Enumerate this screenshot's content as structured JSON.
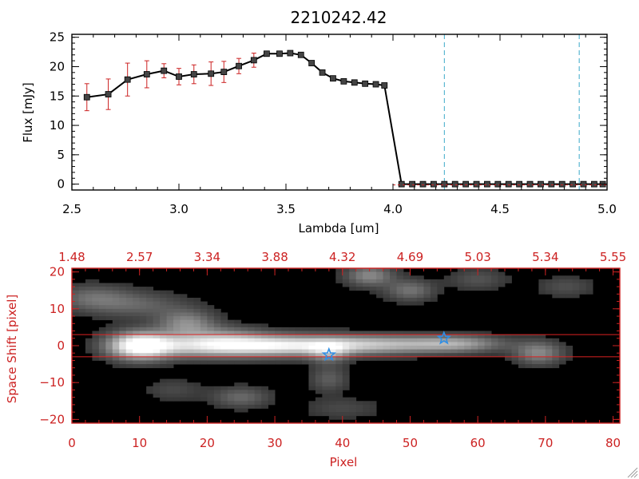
{
  "title": "2210242.42",
  "colors": {
    "axis_black": "#000000",
    "axis_red": "#cc2222",
    "errorbar": "#cc2222",
    "marker": "#444444",
    "vline": "#3aa8c8",
    "trace_band": "#dd2222",
    "star": "#2f8fe6",
    "image_bg": "#000000"
  },
  "chart_data": [
    {
      "type": "line",
      "xlabel": "Lambda [um]",
      "ylabel": "Flux [mJy]",
      "xlim": [
        2.5,
        5.0
      ],
      "ylim": [
        -1,
        25.5
      ],
      "xticks": [
        2.5,
        3.0,
        3.5,
        4.0,
        4.5,
        5.0
      ],
      "xtick_labels": [
        "2.5",
        "3.0",
        "3.5",
        "4.0",
        "4.5",
        "5.0"
      ],
      "yticks": [
        0,
        5,
        10,
        15,
        20,
        25
      ],
      "ytick_labels": [
        "0",
        "5",
        "10",
        "15",
        "20",
        "25"
      ],
      "grid": false,
      "marker": "square",
      "x": [
        2.57,
        2.67,
        2.76,
        2.85,
        2.93,
        3.0,
        3.07,
        3.15,
        3.21,
        3.28,
        3.35,
        3.41,
        3.47,
        3.52,
        3.57,
        3.62,
        3.67,
        3.72,
        3.77,
        3.82,
        3.87,
        3.92,
        3.96,
        4.04,
        4.09,
        4.14,
        4.19,
        4.24,
        4.29,
        4.34,
        4.39,
        4.44,
        4.49,
        4.54,
        4.59,
        4.64,
        4.69,
        4.74,
        4.79,
        4.84,
        4.89,
        4.94,
        4.98
      ],
      "y": [
        14.8,
        15.3,
        17.8,
        18.7,
        19.3,
        18.3,
        18.7,
        18.8,
        19.1,
        20.1,
        21.1,
        22.2,
        22.2,
        22.3,
        22.0,
        20.6,
        19.0,
        18.0,
        17.5,
        17.3,
        17.1,
        17.0,
        16.8,
        0,
        0,
        0,
        0,
        0,
        0,
        0,
        0,
        0,
        0,
        0,
        0,
        0,
        0,
        0,
        0,
        0,
        0,
        0,
        0
      ],
      "yerr": [
        2.3,
        2.6,
        2.8,
        2.3,
        1.2,
        1.4,
        1.6,
        2.0,
        1.8,
        1.3,
        1.2,
        0.3,
        0.3,
        0.3,
        0.3,
        0.3,
        0.3,
        0.3,
        0.3,
        0.3,
        0.3,
        0.3,
        0.3,
        0,
        0,
        0,
        0,
        0,
        0,
        0,
        0,
        0,
        0,
        0,
        0,
        0,
        0,
        0,
        0,
        0,
        0,
        0,
        0
      ],
      "vlines": [
        4.24,
        4.87
      ]
    },
    {
      "type": "heatmap",
      "xlabel": "Pixel",
      "ylabel": "Space Shift [pixel]",
      "xlim": [
        0,
        81
      ],
      "ylim": [
        -21,
        21
      ],
      "xticks": [
        0,
        10,
        20,
        30,
        40,
        50,
        60,
        70,
        80
      ],
      "xtick_labels": [
        "0",
        "10",
        "20",
        "30",
        "40",
        "50",
        "60",
        "70",
        "80"
      ],
      "yticks": [
        -20,
        -10,
        0,
        10,
        20
      ],
      "ytick_labels": [
        "−20",
        "−10",
        "0",
        "10",
        "20"
      ],
      "top_ticks": [
        0,
        10,
        20,
        30,
        40,
        50,
        60,
        70,
        80
      ],
      "top_tick_labels": [
        "1.48",
        "2.57",
        "3.34",
        "3.88",
        "4.32",
        "4.69",
        "5.03",
        "5.34",
        "5.55"
      ],
      "trace_band": [
        -3,
        3
      ],
      "stars": [
        {
          "x": 38,
          "y": -2.5
        },
        {
          "x": 55,
          "y": 2
        }
      ],
      "blobs": [
        {
          "x": 3,
          "y": 13,
          "sx": 4,
          "sy": 2.5,
          "a": 0.3
        },
        {
          "x": 10,
          "y": 11,
          "sx": 5,
          "sy": 2.5,
          "a": 0.25
        },
        {
          "x": 17,
          "y": 6,
          "sx": 3,
          "sy": 2.5,
          "a": 0.45
        },
        {
          "x": 23,
          "y": 3,
          "sx": 4,
          "sy": 2,
          "a": 0.2
        },
        {
          "x": 10,
          "y": 0,
          "sx": 3.2,
          "sy": 2.6,
          "a": 1.0
        },
        {
          "x": 20,
          "y": 0,
          "sx": 7,
          "sy": 2.2,
          "a": 0.75
        },
        {
          "x": 32,
          "y": 0,
          "sx": 7,
          "sy": 2,
          "a": 0.7
        },
        {
          "x": 45,
          "y": 0.3,
          "sx": 7,
          "sy": 1.8,
          "a": 0.6
        },
        {
          "x": 57,
          "y": 0.5,
          "sx": 5,
          "sy": 1.6,
          "a": 0.5
        },
        {
          "x": 38,
          "y": -2,
          "sx": 2,
          "sy": 2,
          "a": 0.35
        },
        {
          "x": 69,
          "y": -2,
          "sx": 2.5,
          "sy": 2.2,
          "a": 0.45
        },
        {
          "x": 44,
          "y": 19,
          "sx": 2.5,
          "sy": 2,
          "a": 0.45
        },
        {
          "x": 50,
          "y": 15,
          "sx": 2.5,
          "sy": 2,
          "a": 0.35
        },
        {
          "x": 25,
          "y": -14,
          "sx": 3,
          "sy": 2,
          "a": 0.3
        },
        {
          "x": 38,
          "y": -9,
          "sx": 2,
          "sy": 2.5,
          "a": 0.25
        },
        {
          "x": 60,
          "y": 18,
          "sx": 3,
          "sy": 2,
          "a": 0.2
        },
        {
          "x": 15,
          "y": -12,
          "sx": 3,
          "sy": 2,
          "a": 0.15
        },
        {
          "x": 73,
          "y": 16,
          "sx": 3,
          "sy": 2,
          "a": 0.18
        },
        {
          "x": 40,
          "y": -17,
          "sx": 4,
          "sy": 2,
          "a": 0.15
        }
      ]
    }
  ]
}
